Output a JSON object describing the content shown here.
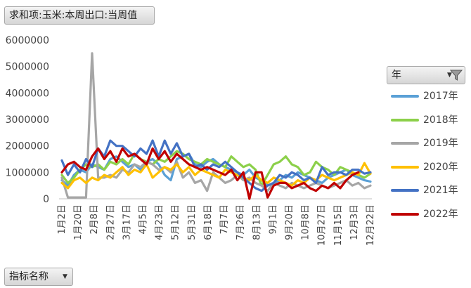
{
  "value_field": {
    "label": "求和项:玉米:本周出口:当周值"
  },
  "category_field": {
    "label": "指标名称"
  },
  "legend_header": {
    "label": "年"
  },
  "chart_data": {
    "type": "line",
    "title": "",
    "xlabel": "",
    "ylabel": "",
    "ylim": [
      0,
      6000000
    ],
    "yticks": [
      0,
      1000000,
      2000000,
      3000000,
      4000000,
      5000000,
      6000000
    ],
    "grid": false,
    "legend_position": "right",
    "x_tick_labels": [
      "1月2日",
      "1月20日",
      "2月8日",
      "2月27日",
      "3月17日",
      "4月5日",
      "4月23日",
      "5月12日",
      "5月31日",
      "6月18日",
      "7月7日",
      "7月26日",
      "8月13日",
      "9月1日",
      "9月20日",
      "10月8日",
      "10月27日",
      "11月15日",
      "12月3日",
      "12月22日"
    ],
    "n_points": 52,
    "series": [
      {
        "name": "2017年",
        "color": "#5aa0d6",
        "values": [
          700000,
          500000,
          900000,
          1100000,
          1000000,
          1300000,
          1200000,
          1100000,
          1500000,
          1600000,
          1400000,
          1200000,
          1300000,
          1100000,
          1400000,
          1500000,
          1300000,
          900000,
          700000,
          1500000,
          1600000,
          1700000,
          1300000,
          1200000,
          1400000,
          1500000,
          1300000,
          1200000,
          1100000,
          1000000,
          900000,
          1100000,
          800000,
          700000,
          500000,
          600000,
          700000,
          900000,
          800000,
          1000000,
          900000,
          800000,
          700000,
          600000,
          800000,
          900000,
          1000000,
          1100000,
          900000,
          800000,
          700000,
          650000
        ]
      },
      {
        "name": "2018年",
        "color": "#8cd04a",
        "values": [
          900000,
          600000,
          800000,
          1100000,
          1300000,
          1200000,
          1300000,
          1100000,
          1400000,
          1300000,
          1500000,
          1300000,
          1700000,
          1500000,
          1400000,
          1300000,
          1500000,
          1400000,
          1600000,
          1800000,
          1700000,
          1500000,
          1400000,
          1300000,
          1500000,
          1400000,
          1300000,
          1200000,
          1600000,
          1400000,
          1200000,
          1300000,
          1100000,
          500000,
          900000,
          1300000,
          1400000,
          1600000,
          1300000,
          1200000,
          900000,
          1000000,
          1400000,
          1200000,
          1100000,
          900000,
          1200000,
          1100000,
          1000000,
          900000,
          800000,
          950000
        ]
      },
      {
        "name": "2019年",
        "color": "#a6a6a6",
        "values": [
          800000,
          50000,
          50000,
          50000,
          50000,
          5500000,
          800000,
          800000,
          900000,
          800000,
          1100000,
          1000000,
          1300000,
          1200000,
          1400000,
          1300000,
          1100000,
          1200000,
          1000000,
          1400000,
          800000,
          1000000,
          600000,
          700000,
          300000,
          1000000,
          800000,
          600000,
          700000,
          900000,
          700000,
          800000,
          600000,
          500000,
          300000,
          600000,
          500000,
          400000,
          600000,
          500000,
          400000,
          500000,
          600000,
          500000,
          400000,
          500000,
          600000,
          700000,
          500000,
          600000,
          400000,
          500000
        ]
      },
      {
        "name": "2020年",
        "color": "#ffc000",
        "values": [
          600000,
          400000,
          700000,
          800000,
          600000,
          800000,
          700000,
          900000,
          800000,
          1000000,
          1200000,
          900000,
          1100000,
          1000000,
          1300000,
          800000,
          1000000,
          1200000,
          1100000,
          1300000,
          1000000,
          1200000,
          900000,
          1100000,
          1000000,
          900000,
          800000,
          1100000,
          1000000,
          900000,
          800000,
          700000,
          900000,
          700000,
          600000,
          800000,
          700000,
          600000,
          500000,
          700000,
          600000,
          800000,
          700000,
          900000,
          800000,
          700000,
          800000,
          900000,
          1000000,
          900000,
          1350000,
          950000
        ]
      },
      {
        "name": "2021年",
        "color": "#4472c4",
        "values": [
          1450000,
          900000,
          1300000,
          1000000,
          1500000,
          1200000,
          1900000,
          1600000,
          2200000,
          2000000,
          2000000,
          1800000,
          1600000,
          1900000,
          1700000,
          2200000,
          1600000,
          2200000,
          1700000,
          2100000,
          1600000,
          1700000,
          1200000,
          1300000,
          1100000,
          1300000,
          1200000,
          1400000,
          1200000,
          1000000,
          800000,
          600000,
          400000,
          300000,
          500000,
          600000,
          900000,
          800000,
          1000000,
          900000,
          700000,
          800000,
          600000,
          1200000,
          900000,
          1000000,
          1000000,
          900000,
          1100000,
          1100000,
          950000,
          1000000
        ]
      },
      {
        "name": "2022年",
        "color": "#c00000",
        "values": [
          1000000,
          1300000,
          1400000,
          1200000,
          1100000,
          1600000,
          1900000,
          1500000,
          1800000,
          1400000,
          1900000,
          1600000,
          1700000,
          1500000,
          1300000,
          1900000,
          1500000,
          1800000,
          1400000,
          1700000,
          1500000,
          1300000,
          1200000,
          1100000,
          1200000,
          1100000,
          1000000,
          900000,
          1100000,
          700000,
          1000000,
          0,
          1000000,
          1000000,
          50000,
          500000,
          600000,
          600000,
          400000,
          500000,
          600000,
          400000,
          300000,
          500000,
          400000,
          600000,
          400000,
          700000,
          900000,
          1000000,
          null,
          null
        ]
      }
    ]
  }
}
